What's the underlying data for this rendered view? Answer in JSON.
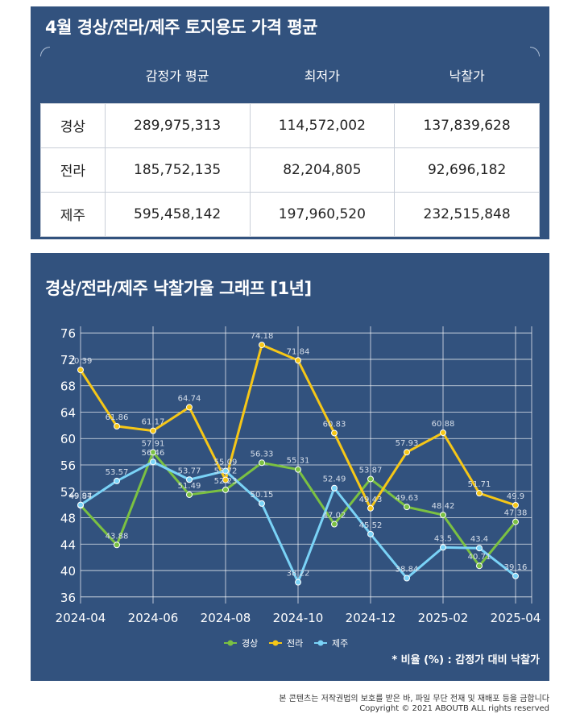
{
  "table": {
    "title": "4월 경상/전라/제주 토지용도 가격 평균",
    "headers": [
      "",
      "감정가 평균",
      "최저가",
      "낙찰가"
    ],
    "rows": [
      {
        "region": "경상",
        "appraisal": "289,975,313",
        "minimum": "114,572,002",
        "winning": "137,839,628"
      },
      {
        "region": "전라",
        "appraisal": "185,752,135",
        "minimum": "82,204,805",
        "winning": "92,696,182"
      },
      {
        "region": "제주",
        "appraisal": "595,458,142",
        "minimum": "197,960,520",
        "winning": "232,515,848"
      }
    ]
  },
  "chart_data": {
    "type": "line",
    "title": "경상/전라/제주 낙찰가율 그래프 [1년]",
    "x": [
      "2024-04",
      "2024-05",
      "2024-06",
      "2024-07",
      "2024-08",
      "2024-09",
      "2024-10",
      "2024-11",
      "2024-12",
      "2025-01",
      "2025-02",
      "2025-03",
      "2025-04"
    ],
    "x_tick_labels": [
      "2024-04",
      "2024-06",
      "2024-08",
      "2024-10",
      "2024-12",
      "2025-02",
      "2025-04"
    ],
    "y_ticks": [
      36,
      40,
      44,
      48,
      52,
      56,
      60,
      64,
      68,
      72,
      76
    ],
    "ylim": [
      35,
      77
    ],
    "grid": true,
    "legend_position": "bottom-center",
    "series": [
      {
        "name": "경상",
        "color": "#7bc142",
        "values": [
          49.87,
          43.88,
          57.91,
          51.49,
          52.23,
          56.33,
          55.31,
          47.02,
          53.87,
          49.63,
          48.42,
          40.71,
          47.38
        ]
      },
      {
        "name": "전라",
        "color": "#f6c717",
        "values": [
          70.39,
          61.86,
          61.17,
          64.74,
          53.72,
          74.18,
          71.84,
          60.83,
          49.43,
          57.93,
          60.88,
          51.71,
          49.9
        ]
      },
      {
        "name": "제주",
        "color": "#7ad3f7",
        "values": [
          49.94,
          53.57,
          56.46,
          53.77,
          55.09,
          50.15,
          38.22,
          52.49,
          45.52,
          38.84,
          43.5,
          43.4,
          39.16
        ]
      }
    ],
    "note": "* 비율 (%) : 감정가 대비 낙찰가"
  },
  "footer": {
    "line1": "본 콘텐츠는 저작권법의 보호를 받은 바, 파일 무단 전재 및 재배포 등을 금합니다",
    "line2": "Copyright © 2021 ABOUTB ALL rights reserved"
  }
}
